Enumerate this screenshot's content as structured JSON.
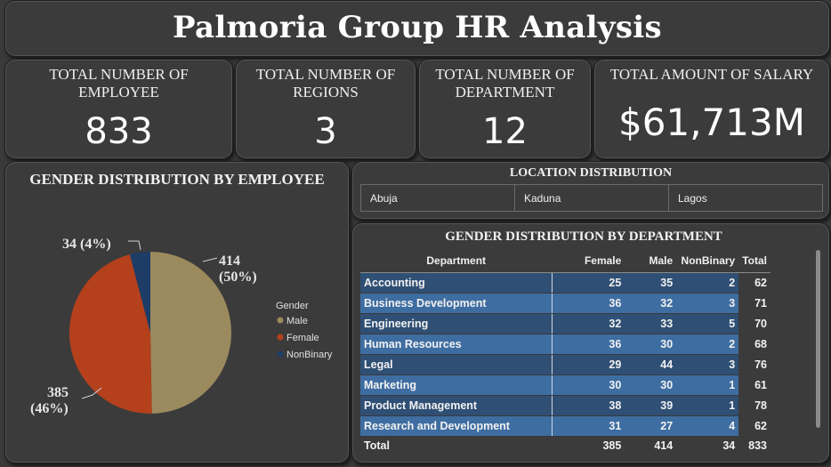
{
  "title": "Palmoria Group HR Analysis",
  "back_icon": "arrow-left-circle-icon",
  "kpis": {
    "employees": {
      "label": "TOTAL NUMBER OF EMPLOYEE",
      "value": "833"
    },
    "regions": {
      "label": "TOTAL NUMBER OF REGIONS",
      "value": "3"
    },
    "departments": {
      "label": "TOTAL NUMBER OF DEPARTMENT",
      "value": "12"
    },
    "salary": {
      "label": "TOTAL AMOUNT OF SALARY",
      "value": "$61,713M"
    }
  },
  "gender_pie": {
    "title": "GENDER DISTRIBUTION BY EMPLOYEE",
    "legend_title": "Gender",
    "slices": [
      {
        "name": "Male",
        "value": 414,
        "label_count": "414",
        "label_pct": "(50%)",
        "color": "#9b8a5e"
      },
      {
        "name": "Female",
        "value": 385,
        "label_count": "385",
        "label_pct": "(46%)",
        "color": "#b5401c"
      },
      {
        "name": "NonBinary",
        "value": 34,
        "label_count": "34",
        "label_pct": "(4%)",
        "color": "#1e3d66"
      }
    ]
  },
  "chart_data": {
    "type": "pie",
    "title": "GENDER DISTRIBUTION BY EMPLOYEE",
    "categories": [
      "Male",
      "Female",
      "NonBinary"
    ],
    "values": [
      414,
      385,
      34
    ],
    "percent_labels": [
      "(50%)",
      "(46%)",
      "(4%)"
    ],
    "legend_title": "Gender",
    "legend_placement": "right"
  },
  "location": {
    "title": "LOCATION DISTRIBUTION",
    "items": [
      "Abuja",
      "Kaduna",
      "Lagos"
    ]
  },
  "dept_table": {
    "title": "GENDER DISTRIBUTION BY DEPARTMENT",
    "headers": {
      "department": "Department",
      "female": "Female",
      "male": "Male",
      "nonbinary": "NonBinary",
      "total": "Total"
    },
    "rows": [
      {
        "department": "Accounting",
        "female": "25",
        "male": "35",
        "nonbinary": "2",
        "total": "62"
      },
      {
        "department": "Business Development",
        "female": "36",
        "male": "32",
        "nonbinary": "3",
        "total": "71"
      },
      {
        "department": "Engineering",
        "female": "32",
        "male": "33",
        "nonbinary": "5",
        "total": "70"
      },
      {
        "department": "Human Resources",
        "female": "36",
        "male": "30",
        "nonbinary": "2",
        "total": "68"
      },
      {
        "department": "Legal",
        "female": "29",
        "male": "44",
        "nonbinary": "3",
        "total": "76"
      },
      {
        "department": "Marketing",
        "female": "30",
        "male": "30",
        "nonbinary": "1",
        "total": "61"
      },
      {
        "department": "Product Management",
        "female": "38",
        "male": "39",
        "nonbinary": "1",
        "total": "78"
      },
      {
        "department": "Research and Development",
        "female": "31",
        "male": "27",
        "nonbinary": "4",
        "total": "62"
      }
    ],
    "totals": {
      "label": "Total",
      "female": "385",
      "male": "414",
      "nonbinary": "34",
      "total": "833"
    }
  }
}
